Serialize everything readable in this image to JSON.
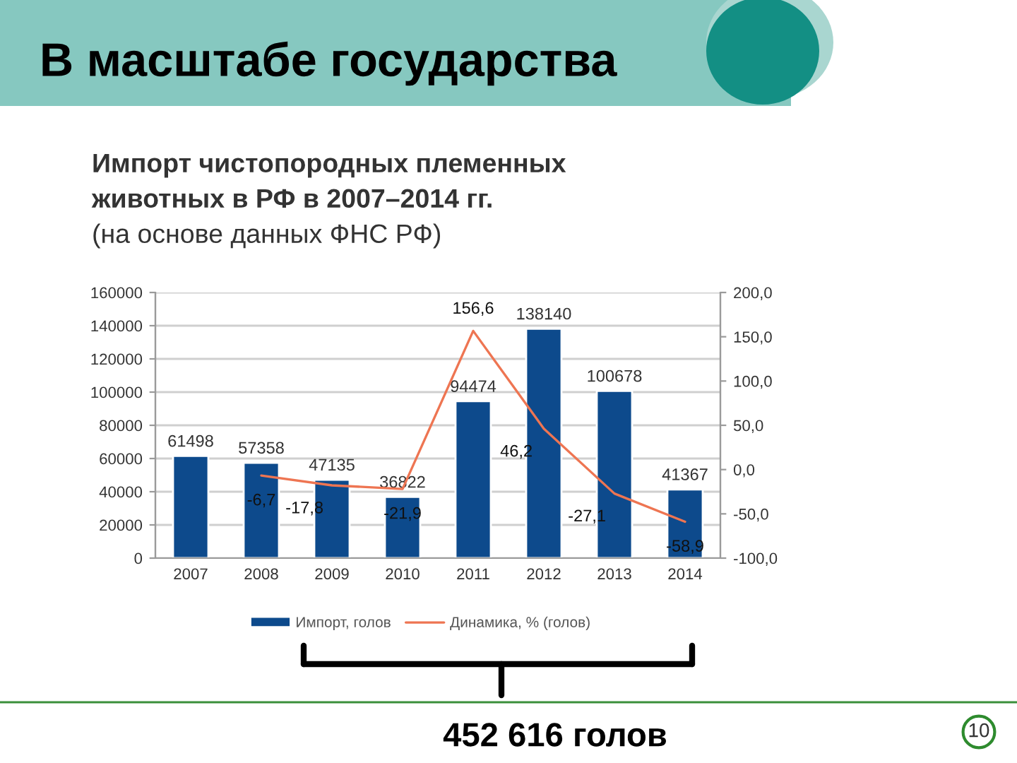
{
  "chart_data": {
    "type": "bar",
    "title": "В масштабе государства",
    "subtitle": "Импорт чистопородных племенных животных в РФ в 2007–2014 гг.",
    "annotations": [
      "(на основе данных ФНС РФ)",
      "452 616 голов",
      "10"
    ],
    "categories": [
      "2007",
      "2008",
      "2009",
      "2010",
      "2011",
      "2012",
      "2013",
      "2014"
    ],
    "series": [
      {
        "name": "Импорт, голов",
        "color": "#0d4a8c",
        "values": [
          61498,
          57358,
          47135,
          36822,
          94474,
          138140,
          100678,
          41367
        ],
        "value_labels": [
          "61498",
          "57358",
          "47135",
          "36822",
          "94474",
          "138140",
          "100678",
          "41367"
        ]
      },
      {
        "name": "Динамика, % (голов)",
        "type": "line",
        "axis": "y2",
        "color": "#ee7552",
        "values": [
          null,
          -6.7,
          -17.8,
          -21.9,
          156.6,
          46.2,
          -27.1,
          -58.9
        ],
        "value_labels": [
          null,
          "-6,7",
          "-17,8",
          "-21,9",
          "156,6",
          "46,2",
          "-27,1",
          "-58,9"
        ]
      }
    ],
    "ylim": [
      0,
      160000
    ],
    "yticks": [
      0,
      20000,
      40000,
      60000,
      80000,
      100000,
      120000,
      140000,
      160000
    ],
    "y2lim": [
      -100,
      200
    ],
    "y2ticks": [
      {
        "value": -100,
        "label": "-100,0"
      },
      {
        "value": -50,
        "label": "-50,0"
      },
      {
        "value": 0,
        "label": "0,0"
      },
      {
        "value": 50,
        "label": "50,0"
      },
      {
        "value": 100,
        "label": "100,0"
      },
      {
        "value": 150,
        "label": "150,0"
      },
      {
        "value": 200,
        "label": "200,0"
      }
    ],
    "grid": "y",
    "legend": "bottom"
  }
}
